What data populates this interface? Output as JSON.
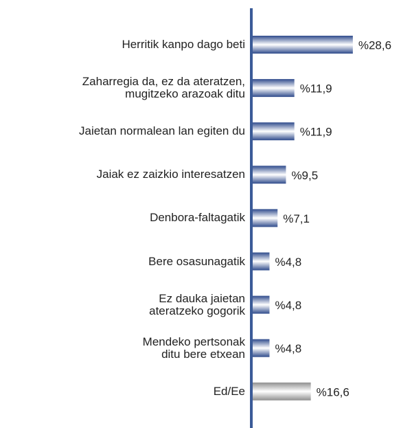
{
  "chart_data": {
    "type": "bar",
    "orientation": "horizontal",
    "categories": [
      "Herritik kanpo dago beti",
      "Zaharregia da, ez da ateratzen,\nmugitzeko arazoak ditu",
      "Jaietan normalean lan egiten du",
      "Jaiak ez zaizkio interesatzen",
      "Denbora-faltagatik",
      "Bere osasunagatik",
      "Ez dauka jaietan\nateratzeko gogorik",
      "Mendeko pertsonak\nditu bere etxean",
      "Ed/Ee"
    ],
    "values": [
      28.6,
      11.9,
      11.9,
      9.5,
      7.1,
      4.8,
      4.8,
      4.8,
      16.6
    ],
    "value_labels": [
      "%28,6",
      "%11,9",
      "%11,9",
      "%9,5",
      "%7,1",
      "%4,8",
      "%4,8",
      "%4,8",
      "%16,6"
    ],
    "colors": [
      "#2f4b8c",
      "#2f4b8c",
      "#2f4b8c",
      "#2f4b8c",
      "#2f4b8c",
      "#2f4b8c",
      "#2f4b8c",
      "#2f4b8c",
      "#8f8f8f"
    ],
    "xlim": [
      0,
      30
    ]
  }
}
